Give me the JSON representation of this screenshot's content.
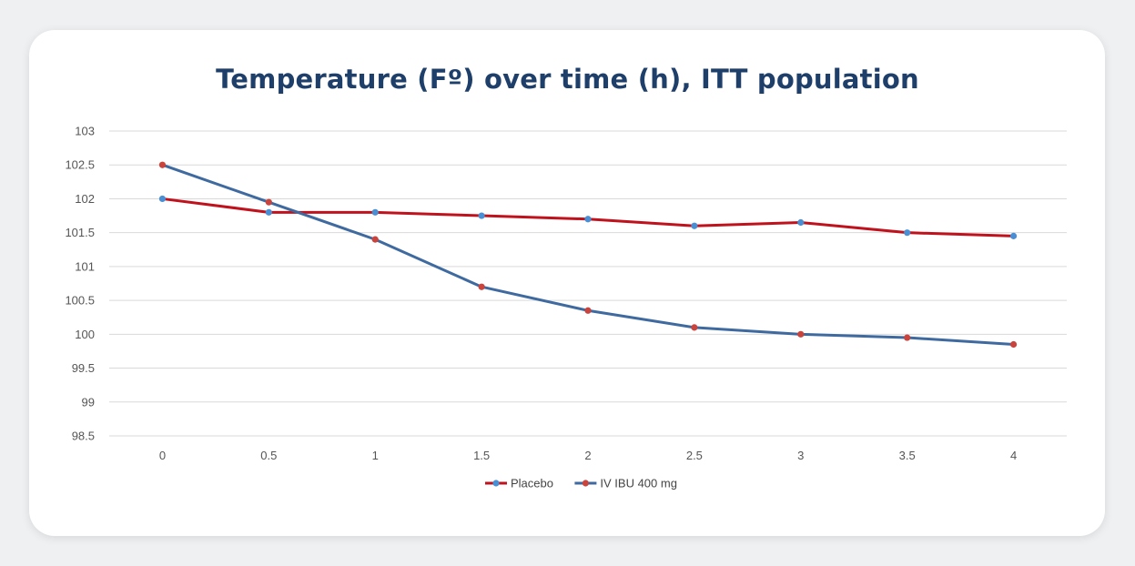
{
  "chart_data": {
    "type": "line",
    "title": "Temperature (Fº) over time (h), ITT population",
    "x": [
      "0",
      "0.5",
      "1",
      "1.5",
      "2",
      "2.5",
      "3",
      "3.5",
      "4"
    ],
    "ylim": [
      98.5,
      103
    ],
    "yticks": [
      "103",
      "102.5",
      "102",
      "101.5",
      "101",
      "100.5",
      "100",
      "99.5",
      "99",
      "98.5"
    ],
    "grid": true,
    "legend_position": "bottom",
    "series": [
      {
        "name": "Placebo",
        "line_color": "#c0121c",
        "marker_color": "#4a8fd4",
        "values": [
          102.0,
          101.8,
          101.8,
          101.75,
          101.7,
          101.6,
          101.65,
          101.5,
          101.45
        ]
      },
      {
        "name": "IV IBU 400 mg",
        "line_color": "#3f6aa0",
        "marker_color": "#c8443c",
        "values": [
          102.5,
          101.95,
          101.4,
          100.7,
          100.35,
          100.1,
          100.0,
          99.95,
          99.85
        ]
      }
    ]
  }
}
